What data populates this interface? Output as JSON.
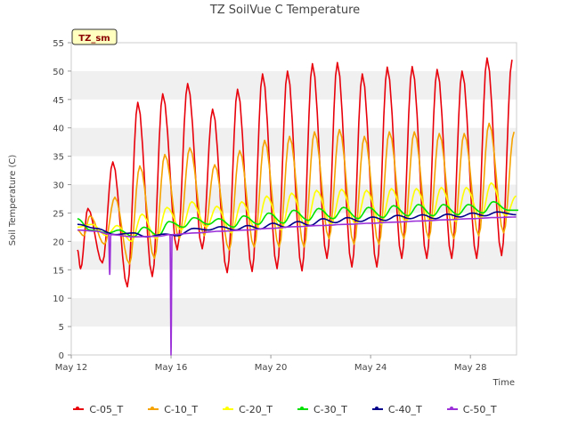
{
  "chart_data": {
    "type": "line",
    "title": "TZ SoilVue C Temperature",
    "xlabel": "Time",
    "ylabel": "Soil Temperature (C)",
    "ylim": [
      0,
      55
    ],
    "yticks": [
      0,
      5,
      10,
      15,
      20,
      25,
      30,
      35,
      40,
      45,
      50,
      55
    ],
    "xlim": [
      "2024-05-12",
      "2024-05-29"
    ],
    "xticks": [
      {
        "date": "2024-05-12",
        "label": "May 12"
      },
      {
        "date": "2024-05-16",
        "label": "May 16"
      },
      {
        "date": "2024-05-20",
        "label": "May 20"
      },
      {
        "date": "2024-05-24",
        "label": "May 24"
      },
      {
        "date": "2024-05-28",
        "label": "May 28"
      }
    ],
    "grid": "horizontal bands",
    "legend": "bottom",
    "annotation": "TZ_sm",
    "series": [
      {
        "name": "C-05_T",
        "color": "#e8000b",
        "values": [
          {
            "date": "2024-05-12T06:00",
            "y": 18.5
          },
          {
            "date": "2024-05-12T09:00",
            "y": 15.2
          },
          {
            "date": "2024-05-12T16:00",
            "y": 25.8
          },
          {
            "date": "2024-05-13T06:00",
            "y": 16.2
          },
          {
            "date": "2024-05-13T16:00",
            "y": 34.0
          },
          {
            "date": "2024-05-14T06:00",
            "y": 12.0
          },
          {
            "date": "2024-05-14T16:00",
            "y": 44.5
          },
          {
            "date": "2024-05-15T06:00",
            "y": 13.8
          },
          {
            "date": "2024-05-15T16:00",
            "y": 46.0
          },
          {
            "date": "2024-05-16T06:00",
            "y": 18.5
          },
          {
            "date": "2024-05-16T16:00",
            "y": 47.8
          },
          {
            "date": "2024-05-17T06:00",
            "y": 18.7
          },
          {
            "date": "2024-05-17T16:00",
            "y": 43.3
          },
          {
            "date": "2024-05-18T06:00",
            "y": 14.5
          },
          {
            "date": "2024-05-18T16:00",
            "y": 46.8
          },
          {
            "date": "2024-05-19T06:00",
            "y": 14.7
          },
          {
            "date": "2024-05-19T16:00",
            "y": 49.5
          },
          {
            "date": "2024-05-20T06:00",
            "y": 15.2
          },
          {
            "date": "2024-05-20T16:00",
            "y": 50.0
          },
          {
            "date": "2024-05-21T06:00",
            "y": 14.8
          },
          {
            "date": "2024-05-21T16:00",
            "y": 51.3
          },
          {
            "date": "2024-05-22T06:00",
            "y": 17.0
          },
          {
            "date": "2024-05-22T16:00",
            "y": 51.5
          },
          {
            "date": "2024-05-23T06:00",
            "y": 15.5
          },
          {
            "date": "2024-05-23T16:00",
            "y": 49.5
          },
          {
            "date": "2024-05-24T06:00",
            "y": 15.5
          },
          {
            "date": "2024-05-24T16:00",
            "y": 50.7
          },
          {
            "date": "2024-05-25T06:00",
            "y": 17.0
          },
          {
            "date": "2024-05-25T16:00",
            "y": 50.8
          },
          {
            "date": "2024-05-26T06:00",
            "y": 17.0
          },
          {
            "date": "2024-05-26T16:00",
            "y": 50.3
          },
          {
            "date": "2024-05-27T06:00",
            "y": 17.0
          },
          {
            "date": "2024-05-27T16:00",
            "y": 50.0
          },
          {
            "date": "2024-05-28T06:00",
            "y": 17.0
          },
          {
            "date": "2024-05-28T16:00",
            "y": 52.3
          },
          {
            "date": "2024-05-29T06:00",
            "y": 17.5
          },
          {
            "date": "2024-05-29T16:00",
            "y": 52.0
          }
        ]
      },
      {
        "name": "C-10_T",
        "color": "#f5a300",
        "values": [
          {
            "date": "2024-05-12T06:00",
            "y": 22.0
          },
          {
            "date": "2024-05-12T12:00",
            "y": 21.0
          },
          {
            "date": "2024-05-12T18:00",
            "y": 24.5
          },
          {
            "date": "2024-05-13T08:00",
            "y": 19.5
          },
          {
            "date": "2024-05-13T18:00",
            "y": 27.8
          },
          {
            "date": "2024-05-14T08:00",
            "y": 16.0
          },
          {
            "date": "2024-05-14T18:00",
            "y": 33.3
          },
          {
            "date": "2024-05-15T08:00",
            "y": 17.0
          },
          {
            "date": "2024-05-15T18:00",
            "y": 35.3
          },
          {
            "date": "2024-05-16T08:00",
            "y": 20.5
          },
          {
            "date": "2024-05-16T18:00",
            "y": 36.5
          },
          {
            "date": "2024-05-17T08:00",
            "y": 21.0
          },
          {
            "date": "2024-05-17T18:00",
            "y": 33.5
          },
          {
            "date": "2024-05-18T08:00",
            "y": 18.5
          },
          {
            "date": "2024-05-18T18:00",
            "y": 36.0
          },
          {
            "date": "2024-05-19T08:00",
            "y": 19.0
          },
          {
            "date": "2024-05-19T18:00",
            "y": 37.8
          },
          {
            "date": "2024-05-20T08:00",
            "y": 19.0
          },
          {
            "date": "2024-05-20T18:00",
            "y": 38.5
          },
          {
            "date": "2024-05-21T08:00",
            "y": 19.0
          },
          {
            "date": "2024-05-21T18:00",
            "y": 39.3
          },
          {
            "date": "2024-05-22T08:00",
            "y": 20.5
          },
          {
            "date": "2024-05-22T18:00",
            "y": 39.7
          },
          {
            "date": "2024-05-23T08:00",
            "y": 19.5
          },
          {
            "date": "2024-05-23T18:00",
            "y": 38.5
          },
          {
            "date": "2024-05-24T08:00",
            "y": 19.5
          },
          {
            "date": "2024-05-24T18:00",
            "y": 39.3
          },
          {
            "date": "2024-05-25T08:00",
            "y": 20.5
          },
          {
            "date": "2024-05-25T18:00",
            "y": 39.3
          },
          {
            "date": "2024-05-26T08:00",
            "y": 20.5
          },
          {
            "date": "2024-05-26T18:00",
            "y": 39.0
          },
          {
            "date": "2024-05-27T08:00",
            "y": 20.5
          },
          {
            "date": "2024-05-27T18:00",
            "y": 39.0
          },
          {
            "date": "2024-05-28T08:00",
            "y": 21.0
          },
          {
            "date": "2024-05-28T18:00",
            "y": 40.8
          },
          {
            "date": "2024-05-29T08:00",
            "y": 21.5
          },
          {
            "date": "2024-05-29T18:00",
            "y": 39.3
          }
        ]
      },
      {
        "name": "C-20_T",
        "color": "#ffff00",
        "values": [
          {
            "date": "2024-05-12T06:00",
            "y": 22.5
          },
          {
            "date": "2024-05-12T20:00",
            "y": 23.0
          },
          {
            "date": "2024-05-13T10:00",
            "y": 21.0
          },
          {
            "date": "2024-05-13T20:00",
            "y": 22.8
          },
          {
            "date": "2024-05-14T10:00",
            "y": 20.0
          },
          {
            "date": "2024-05-14T20:00",
            "y": 24.8
          },
          {
            "date": "2024-05-15T10:00",
            "y": 20.5
          },
          {
            "date": "2024-05-15T20:00",
            "y": 26.0
          },
          {
            "date": "2024-05-16T10:00",
            "y": 22.0
          },
          {
            "date": "2024-05-16T20:00",
            "y": 27.0
          },
          {
            "date": "2024-05-17T10:00",
            "y": 22.5
          },
          {
            "date": "2024-05-17T20:00",
            "y": 26.2
          },
          {
            "date": "2024-05-18T10:00",
            "y": 21.5
          },
          {
            "date": "2024-05-18T20:00",
            "y": 27.0
          },
          {
            "date": "2024-05-19T10:00",
            "y": 22.0
          },
          {
            "date": "2024-05-19T20:00",
            "y": 28.0
          },
          {
            "date": "2024-05-20T10:00",
            "y": 22.0
          },
          {
            "date": "2024-05-20T20:00",
            "y": 28.5
          },
          {
            "date": "2024-05-21T10:00",
            "y": 22.5
          },
          {
            "date": "2024-05-21T20:00",
            "y": 29.0
          },
          {
            "date": "2024-05-22T10:00",
            "y": 23.0
          },
          {
            "date": "2024-05-22T20:00",
            "y": 29.2
          },
          {
            "date": "2024-05-23T10:00",
            "y": 23.0
          },
          {
            "date": "2024-05-23T20:00",
            "y": 29.0
          },
          {
            "date": "2024-05-24T10:00",
            "y": 23.0
          },
          {
            "date": "2024-05-24T20:00",
            "y": 29.3
          },
          {
            "date": "2024-05-25T10:00",
            "y": 23.5
          },
          {
            "date": "2024-05-25T20:00",
            "y": 29.3
          },
          {
            "date": "2024-05-26T10:00",
            "y": 23.5
          },
          {
            "date": "2024-05-26T20:00",
            "y": 29.5
          },
          {
            "date": "2024-05-27T10:00",
            "y": 23.5
          },
          {
            "date": "2024-05-27T20:00",
            "y": 29.5
          },
          {
            "date": "2024-05-28T10:00",
            "y": 24.0
          },
          {
            "date": "2024-05-28T20:00",
            "y": 30.3
          },
          {
            "date": "2024-05-29T10:00",
            "y": 24.5
          },
          {
            "date": "2024-05-29T20:00",
            "y": 28.0
          }
        ]
      },
      {
        "name": "C-30_T",
        "color": "#00e000",
        "values": [
          {
            "date": "2024-05-12T06:00",
            "y": 24.0
          },
          {
            "date": "2024-05-12T18:00",
            "y": 22.0
          },
          {
            "date": "2024-05-13T12:00",
            "y": 21.5
          },
          {
            "date": "2024-05-13T22:00",
            "y": 22.0
          },
          {
            "date": "2024-05-14T12:00",
            "y": 20.8
          },
          {
            "date": "2024-05-14T22:00",
            "y": 22.5
          },
          {
            "date": "2024-05-15T12:00",
            "y": 21.0
          },
          {
            "date": "2024-05-15T22:00",
            "y": 23.5
          },
          {
            "date": "2024-05-16T12:00",
            "y": 22.5
          },
          {
            "date": "2024-05-16T22:00",
            "y": 24.2
          },
          {
            "date": "2024-05-17T12:00",
            "y": 23.0
          },
          {
            "date": "2024-05-17T22:00",
            "y": 24.0
          },
          {
            "date": "2024-05-18T12:00",
            "y": 22.5
          },
          {
            "date": "2024-05-18T22:00",
            "y": 24.5
          },
          {
            "date": "2024-05-19T12:00",
            "y": 23.0
          },
          {
            "date": "2024-05-19T22:00",
            "y": 25.0
          },
          {
            "date": "2024-05-20T12:00",
            "y": 23.2
          },
          {
            "date": "2024-05-20T22:00",
            "y": 25.5
          },
          {
            "date": "2024-05-21T12:00",
            "y": 23.7
          },
          {
            "date": "2024-05-21T22:00",
            "y": 25.8
          },
          {
            "date": "2024-05-22T12:00",
            "y": 24.0
          },
          {
            "date": "2024-05-22T22:00",
            "y": 26.0
          },
          {
            "date": "2024-05-23T12:00",
            "y": 24.0
          },
          {
            "date": "2024-05-23T22:00",
            "y": 26.0
          },
          {
            "date": "2024-05-24T12:00",
            "y": 24.2
          },
          {
            "date": "2024-05-24T22:00",
            "y": 26.3
          },
          {
            "date": "2024-05-25T12:00",
            "y": 24.5
          },
          {
            "date": "2024-05-25T22:00",
            "y": 26.5
          },
          {
            "date": "2024-05-26T12:00",
            "y": 24.5
          },
          {
            "date": "2024-05-26T22:00",
            "y": 26.5
          },
          {
            "date": "2024-05-27T12:00",
            "y": 24.7
          },
          {
            "date": "2024-05-27T22:00",
            "y": 26.5
          },
          {
            "date": "2024-05-28T12:00",
            "y": 25.0
          },
          {
            "date": "2024-05-28T22:00",
            "y": 27.0
          },
          {
            "date": "2024-05-29T12:00",
            "y": 25.5
          },
          {
            "date": "2024-05-29T22:00",
            "y": 25.5
          }
        ]
      },
      {
        "name": "C-40_T",
        "color": "#00008b",
        "values": [
          {
            "date": "2024-05-12T06:00",
            "y": 23.0
          },
          {
            "date": "2024-05-13T00:00",
            "y": 22.3
          },
          {
            "date": "2024-05-13T18:00",
            "y": 21.2
          },
          {
            "date": "2024-05-14T12:00",
            "y": 21.5
          },
          {
            "date": "2024-05-15T00:00",
            "y": 20.8
          },
          {
            "date": "2024-05-15T18:00",
            "y": 21.3
          },
          {
            "date": "2024-05-16T06:00",
            "y": 21.0
          },
          {
            "date": "2024-05-16T22:00",
            "y": 22.3
          },
          {
            "date": "2024-05-17T12:00",
            "y": 22.0
          },
          {
            "date": "2024-05-18T00:00",
            "y": 22.6
          },
          {
            "date": "2024-05-18T14:00",
            "y": 22.0
          },
          {
            "date": "2024-05-19T02:00",
            "y": 22.8
          },
          {
            "date": "2024-05-19T14:00",
            "y": 22.2
          },
          {
            "date": "2024-05-20T02:00",
            "y": 23.2
          },
          {
            "date": "2024-05-20T14:00",
            "y": 22.5
          },
          {
            "date": "2024-05-21T02:00",
            "y": 23.5
          },
          {
            "date": "2024-05-21T14:00",
            "y": 22.8
          },
          {
            "date": "2024-05-22T02:00",
            "y": 24.0
          },
          {
            "date": "2024-05-22T14:00",
            "y": 23.3
          },
          {
            "date": "2024-05-23T02:00",
            "y": 24.2
          },
          {
            "date": "2024-05-23T14:00",
            "y": 23.5
          },
          {
            "date": "2024-05-24T02:00",
            "y": 24.3
          },
          {
            "date": "2024-05-24T14:00",
            "y": 23.7
          },
          {
            "date": "2024-05-25T02:00",
            "y": 24.6
          },
          {
            "date": "2024-05-25T14:00",
            "y": 24.0
          },
          {
            "date": "2024-05-26T02:00",
            "y": 24.7
          },
          {
            "date": "2024-05-26T14:00",
            "y": 24.0
          },
          {
            "date": "2024-05-27T02:00",
            "y": 24.8
          },
          {
            "date": "2024-05-27T14:00",
            "y": 24.3
          },
          {
            "date": "2024-05-28T02:00",
            "y": 25.0
          },
          {
            "date": "2024-05-28T14:00",
            "y": 24.5
          },
          {
            "date": "2024-05-29T02:00",
            "y": 25.2
          },
          {
            "date": "2024-05-29T20:00",
            "y": 24.7
          }
        ]
      },
      {
        "name": "C-50_T",
        "color": "#9b30d9",
        "values": [
          {
            "date": "2024-05-12T06:00",
            "y": 22.0
          },
          {
            "date": "2024-05-13T00:00",
            "y": 21.8
          },
          {
            "date": "2024-05-13T12:00",
            "y": 21.3
          },
          {
            "date": "2024-05-13T13:00",
            "y": 14.2
          },
          {
            "date": "2024-05-13T14:00",
            "y": 21.2
          },
          {
            "date": "2024-05-14T12:00",
            "y": 20.8
          },
          {
            "date": "2024-05-15T12:00",
            "y": 20.9
          },
          {
            "date": "2024-05-15T23:00",
            "y": 21.2
          },
          {
            "date": "2024-05-16T00:00",
            "y": 0.0
          },
          {
            "date": "2024-05-16T01:00",
            "y": 21.2
          },
          {
            "date": "2024-05-17T00:00",
            "y": 21.5
          },
          {
            "date": "2024-05-18T00:00",
            "y": 21.8
          },
          {
            "date": "2024-05-19T00:00",
            "y": 22.0
          },
          {
            "date": "2024-05-20T00:00",
            "y": 22.3
          },
          {
            "date": "2024-05-21T00:00",
            "y": 22.6
          },
          {
            "date": "2024-05-22T00:00",
            "y": 22.8
          },
          {
            "date": "2024-05-23T00:00",
            "y": 23.0
          },
          {
            "date": "2024-05-24T00:00",
            "y": 23.2
          },
          {
            "date": "2024-05-25T00:00",
            "y": 23.4
          },
          {
            "date": "2024-05-26T00:00",
            "y": 23.6
          },
          {
            "date": "2024-05-27T00:00",
            "y": 23.8
          },
          {
            "date": "2024-05-28T00:00",
            "y": 24.0
          },
          {
            "date": "2024-05-29T00:00",
            "y": 24.2
          },
          {
            "date": "2024-05-29T20:00",
            "y": 24.3
          }
        ]
      }
    ]
  }
}
